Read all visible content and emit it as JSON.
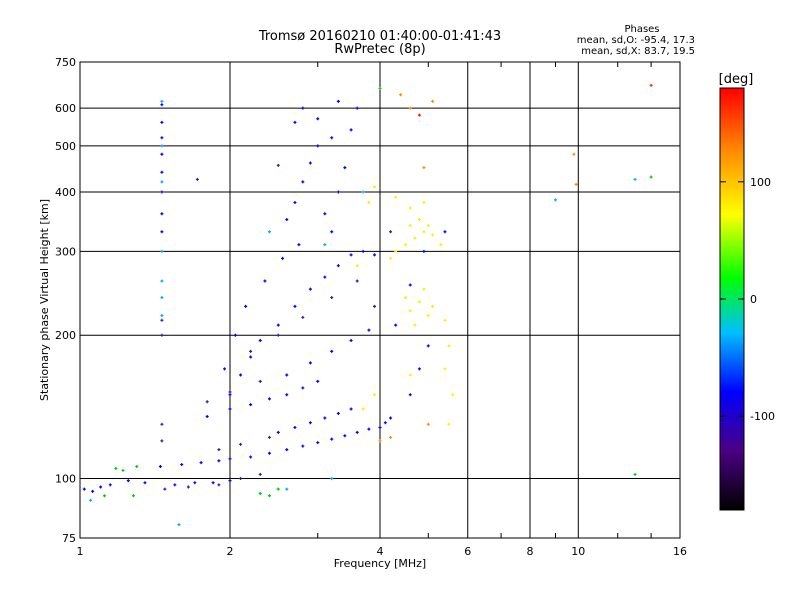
{
  "chart_data": {
    "type": "scatter",
    "title": "Tromsø 20160210 01:40:00-01:41:43",
    "subtitle": "RwPretec (8p)",
    "xlabel": "Frequency [MHz]",
    "ylabel": "Stationary phase Virtual Height [km]",
    "x_scale": "log",
    "y_scale": "log",
    "xlim": [
      1,
      16
    ],
    "ylim": [
      75,
      750
    ],
    "x_ticks": [
      1,
      2,
      4,
      6,
      8,
      10,
      16
    ],
    "x_tick_labels": [
      "1",
      "2",
      "4",
      "6",
      "8",
      "10",
      "16"
    ],
    "y_ticks": [
      75,
      100,
      200,
      300,
      400,
      500,
      600,
      750
    ],
    "y_tick_labels": [
      "75",
      "100",
      "200",
      "300",
      "400",
      "500",
      "600",
      "750"
    ],
    "grid": true,
    "stats": {
      "heading": "Phases",
      "line1": "mean, sd,O: -95.4, 17.3",
      "line2": "mean, sd,X:  83.7, 19.5"
    },
    "colorbar": {
      "label": "[deg]",
      "tick_values": [
        100,
        0,
        -100
      ],
      "tick_labels": [
        "100",
        "0",
        "-100"
      ],
      "range": [
        -180,
        180
      ],
      "colors": [
        "#000000",
        "#4b0082",
        "#0000ff",
        "#00bfff",
        "#00ff00",
        "#ffff00",
        "#ff8c00",
        "#ff0000"
      ]
    },
    "series": [
      {
        "phase_deg": -90,
        "color": "#0000ff",
        "points": [
          [
            1.02,
            95
          ],
          [
            1.06,
            94
          ],
          [
            1.1,
            96
          ],
          [
            1.15,
            97
          ],
          [
            1.25,
            99
          ],
          [
            1.35,
            98
          ],
          [
            1.55,
            97
          ],
          [
            1.7,
            98
          ],
          [
            1.85,
            98
          ],
          [
            2.0,
            99
          ],
          [
            1.45,
            106
          ],
          [
            1.6,
            107
          ],
          [
            1.75,
            108
          ],
          [
            1.9,
            109
          ],
          [
            2.0,
            110
          ],
          [
            2.2,
            111
          ],
          [
            2.4,
            113
          ],
          [
            2.6,
            115
          ],
          [
            2.8,
            117
          ],
          [
            3.0,
            119
          ],
          [
            3.2,
            121
          ],
          [
            3.4,
            123
          ],
          [
            3.6,
            125
          ],
          [
            3.8,
            127
          ],
          [
            4.0,
            128
          ],
          [
            4.1,
            131
          ],
          [
            4.2,
            134
          ],
          [
            2.5,
            125
          ],
          [
            2.7,
            128
          ],
          [
            2.9,
            131
          ],
          [
            3.1,
            134
          ],
          [
            3.3,
            137
          ],
          [
            3.5,
            140
          ],
          [
            1.8,
            135
          ],
          [
            2.0,
            140
          ],
          [
            2.2,
            143
          ],
          [
            2.4,
            147
          ],
          [
            2.6,
            150
          ],
          [
            2.8,
            155
          ],
          [
            3.0,
            160
          ],
          [
            2.6,
            165
          ],
          [
            2.9,
            175
          ],
          [
            3.2,
            185
          ],
          [
            3.5,
            195
          ],
          [
            3.8,
            205
          ],
          [
            2.0,
            150
          ],
          [
            2.1,
            165
          ],
          [
            2.2,
            180
          ],
          [
            2.3,
            195
          ],
          [
            2.5,
            210
          ],
          [
            2.7,
            230
          ],
          [
            2.9,
            250
          ],
          [
            3.1,
            265
          ],
          [
            3.3,
            280
          ],
          [
            3.5,
            295
          ],
          [
            3.7,
            300
          ],
          [
            3.9,
            295
          ],
          [
            2.6,
            350
          ],
          [
            2.7,
            380
          ],
          [
            2.8,
            420
          ],
          [
            2.9,
            460
          ],
          [
            3.0,
            500
          ],
          [
            3.1,
            360
          ],
          [
            3.2,
            330
          ],
          [
            3.3,
            400
          ],
          [
            3.4,
            450
          ],
          [
            3.5,
            540
          ],
          [
            3.6,
            600
          ],
          [
            3.3,
            620
          ],
          [
            2.7,
            560
          ],
          [
            2.8,
            600
          ],
          [
            3.0,
            570
          ],
          [
            3.2,
            520
          ],
          [
            1.95,
            170
          ],
          [
            2.05,
            200
          ],
          [
            2.15,
            230
          ],
          [
            2.35,
            260
          ],
          [
            2.55,
            290
          ],
          [
            2.75,
            310
          ],
          [
            1.46,
            610
          ],
          [
            1.46,
            560
          ],
          [
            1.46,
            520
          ],
          [
            1.46,
            480
          ],
          [
            1.46,
            440
          ],
          [
            1.46,
            400
          ],
          [
            1.46,
            360
          ],
          [
            1.46,
            330
          ],
          [
            4.6,
            150
          ],
          [
            4.8,
            170
          ],
          [
            5.0,
            190
          ],
          [
            4.3,
            210
          ],
          [
            4.6,
            255
          ],
          [
            4.9,
            300
          ],
          [
            5.4,
            330
          ]
        ]
      },
      {
        "phase_deg": -130,
        "color": "#3a1aa8",
        "points": [
          [
            1.48,
            95
          ],
          [
            1.65,
            96
          ],
          [
            1.9,
            97
          ],
          [
            2.1,
            100
          ],
          [
            2.3,
            102
          ],
          [
            1.8,
            145
          ],
          [
            2.0,
            152
          ],
          [
            2.3,
            160
          ],
          [
            1.9,
            115
          ],
          [
            2.1,
            118
          ],
          [
            2.4,
            122
          ],
          [
            2.2,
            185
          ],
          [
            2.5,
            200
          ],
          [
            2.8,
            218
          ],
          [
            3.2,
            240
          ],
          [
            3.6,
            260
          ],
          [
            1.46,
            215
          ],
          [
            1.46,
            200
          ],
          [
            1.46,
            130
          ],
          [
            1.46,
            120
          ],
          [
            1.72,
            425
          ],
          [
            2.5,
            455
          ],
          [
            4.2,
            330
          ],
          [
            3.9,
            230
          ]
        ]
      },
      {
        "phase_deg": -60,
        "color": "#00aaff",
        "points": [
          [
            1.46,
            620
          ],
          [
            1.46,
            500
          ],
          [
            1.46,
            420
          ],
          [
            1.46,
            300
          ],
          [
            1.46,
            260
          ],
          [
            1.46,
            240
          ],
          [
            1.46,
            220
          ],
          [
            1.05,
            90
          ],
          [
            2.6,
            95
          ],
          [
            3.2,
            100
          ],
          [
            2.4,
            330
          ],
          [
            3.1,
            310
          ],
          [
            9.0,
            385
          ],
          [
            13.0,
            425
          ],
          [
            1.58,
            80
          ],
          [
            3.7,
            400
          ]
        ]
      },
      {
        "phase_deg": 0,
        "color": "#00cc00",
        "points": [
          [
            1.18,
            105
          ],
          [
            1.22,
            104
          ],
          [
            1.3,
            106
          ],
          [
            1.12,
            92
          ],
          [
            1.28,
            92
          ],
          [
            2.3,
            93
          ],
          [
            2.4,
            92
          ],
          [
            2.5,
            95
          ],
          [
            14.0,
            430
          ],
          [
            13.0,
            102
          ],
          [
            4.0,
            660
          ]
        ]
      },
      {
        "phase_deg": 100,
        "color": "#ffee00",
        "points": [
          [
            4.3,
            300
          ],
          [
            4.5,
            310
          ],
          [
            4.7,
            320
          ],
          [
            4.9,
            330
          ],
          [
            5.1,
            325
          ],
          [
            4.6,
            340
          ],
          [
            4.8,
            350
          ],
          [
            5.0,
            340
          ],
          [
            4.6,
            225
          ],
          [
            4.8,
            235
          ],
          [
            5.0,
            220
          ],
          [
            4.5,
            240
          ],
          [
            4.7,
            210
          ],
          [
            4.9,
            250
          ],
          [
            5.1,
            230
          ],
          [
            5.4,
            215
          ],
          [
            5.5,
            190
          ],
          [
            5.4,
            170
          ],
          [
            5.6,
            150
          ],
          [
            5.5,
            130
          ],
          [
            3.8,
            380
          ],
          [
            3.9,
            410
          ],
          [
            4.3,
            390
          ],
          [
            4.6,
            370
          ],
          [
            4.9,
            380
          ],
          [
            3.7,
            140
          ],
          [
            3.9,
            150
          ],
          [
            4.6,
            165
          ],
          [
            5.3,
            310
          ],
          [
            4.2,
            290
          ],
          [
            3.6,
            280
          ]
        ]
      },
      {
        "phase_deg": 130,
        "color": "#ff8c00",
        "points": [
          [
            4.6,
            600
          ],
          [
            4.4,
            640
          ],
          [
            5.1,
            620
          ],
          [
            9.8,
            480
          ],
          [
            9.9,
            415
          ],
          [
            4.9,
            450
          ],
          [
            4.0,
            120
          ],
          [
            4.2,
            122
          ],
          [
            5.0,
            130
          ]
        ]
      },
      {
        "phase_deg": 170,
        "color": "#ff2200",
        "points": [
          [
            14.0,
            670
          ],
          [
            4.8,
            580
          ]
        ]
      }
    ]
  }
}
